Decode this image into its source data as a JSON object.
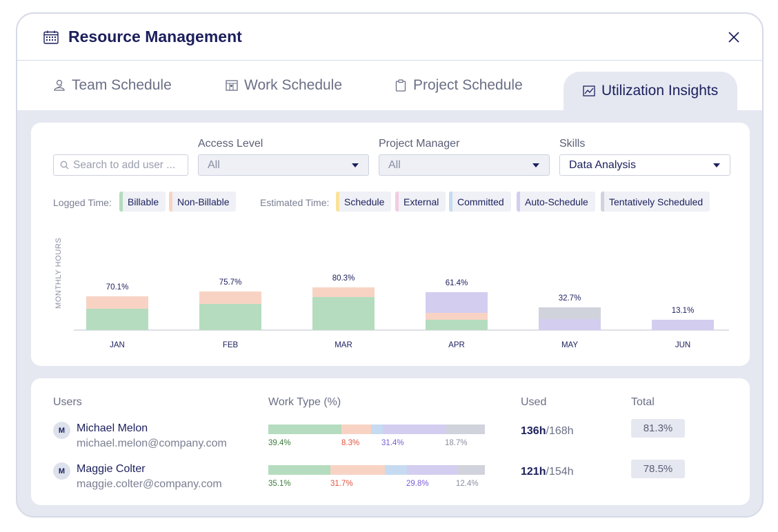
{
  "header": {
    "title": "Resource Management",
    "icon": "calendar-icon",
    "close_icon": "close-icon"
  },
  "tabs": [
    {
      "label": "Team Schedule",
      "icon": "team-icon",
      "active": false
    },
    {
      "label": "Work Schedule",
      "icon": "work-schedule-icon",
      "active": false
    },
    {
      "label": "Project Schedule",
      "icon": "clipboard-icon",
      "active": false
    },
    {
      "label": "Utilization Insights",
      "icon": "chart-line-icon",
      "active": true
    }
  ],
  "filters": {
    "search_placeholder": "Search to add user ...",
    "access_level": {
      "label": "Access Level",
      "value": "All"
    },
    "project_manager": {
      "label": "Project Manager",
      "value": "All"
    },
    "skills": {
      "label": "Skills",
      "value": "Data Analysis"
    }
  },
  "legend": {
    "logged_label": "Logged Time:",
    "estimated_label": "Estimated Time:",
    "items": [
      {
        "label": "Billable",
        "color": "#b5dcbf"
      },
      {
        "label": "Non-Billable",
        "color": "#f8d3c4"
      },
      {
        "label": "Schedule",
        "color": "#fbe29a"
      },
      {
        "label": "External",
        "color": "#f2cde3"
      },
      {
        "label": "Committed",
        "color": "#c6dbf1"
      },
      {
        "label": "Auto-Schedule",
        "color": "#d3cdf0"
      },
      {
        "label": "Tentatively Scheduled",
        "color": "#d1d3dc"
      }
    ]
  },
  "chart_data": {
    "type": "bar",
    "stacked": true,
    "ylabel": "MONTHLY HOURS",
    "categories": [
      "JAN",
      "FEB",
      "MAR",
      "APR",
      "MAY",
      "JUN"
    ],
    "data_labels": [
      "70.1%",
      "75.7%",
      "80.3%",
      "61.4%",
      "32.7%",
      "13.1%"
    ],
    "series": [
      {
        "name": "Billable",
        "color": "#b5dcbf",
        "values": [
          31,
          38,
          48,
          15,
          0,
          0
        ]
      },
      {
        "name": "Non-Billable",
        "color": "#f8d3c4",
        "values": [
          18,
          18,
          14,
          10,
          0,
          0
        ]
      },
      {
        "name": "Auto-Schedule",
        "color": "#d3cdf0",
        "values": [
          0,
          0,
          0,
          30,
          16,
          15
        ]
      },
      {
        "name": "Tentatively Scheduled",
        "color": "#d1d3dc",
        "values": [
          0,
          0,
          0,
          0,
          17,
          0
        ]
      }
    ],
    "ylim": [
      0,
      75
    ],
    "grid": false
  },
  "users": {
    "headers": {
      "users": "Users",
      "work_type": "Work Type (%)",
      "used": "Used",
      "total": "Total"
    },
    "rows": [
      {
        "initial": "M",
        "name": "Michael Melon",
        "email": "michael.melon@company.com",
        "work": [
          {
            "pct": 33.8,
            "color": "#b5dcbf"
          },
          {
            "pct": 13.6,
            "color": "#f8d3c4"
          },
          {
            "pct": 5.4,
            "color": "#c6dbf1"
          },
          {
            "pct": 29.5,
            "color": "#d3cdf0"
          },
          {
            "pct": 17.7,
            "color": "#d1d3dc"
          }
        ],
        "labels": [
          "39.4%",
          "8.3%",
          "31.4%",
          "18.7%"
        ],
        "used": "136h",
        "capacity": "/168h",
        "total": "81.3%"
      },
      {
        "initial": "M",
        "name": "Maggie Colter",
        "email": "maggie.colter@company.com",
        "work": [
          {
            "pct": 28.7,
            "color": "#b5dcbf"
          },
          {
            "pct": 25.2,
            "color": "#f8d3c4"
          },
          {
            "pct": 10.2,
            "color": "#c6dbf1"
          },
          {
            "pct": 23.2,
            "color": "#d3cdf0"
          },
          {
            "pct": 12.7,
            "color": "#d1d3dc"
          }
        ],
        "labels": [
          "35.1%",
          "31.7%",
          "29.8%",
          "12.4%"
        ],
        "used": "121h",
        "capacity": "/154h",
        "total": "78.5%"
      }
    ]
  },
  "colors": {
    "accent": "#1b1f5c",
    "label_green": "#3a7a3a",
    "label_red": "#e0533e",
    "label_purple": "#7b5cd6",
    "label_gray": "#8a8ea0"
  }
}
